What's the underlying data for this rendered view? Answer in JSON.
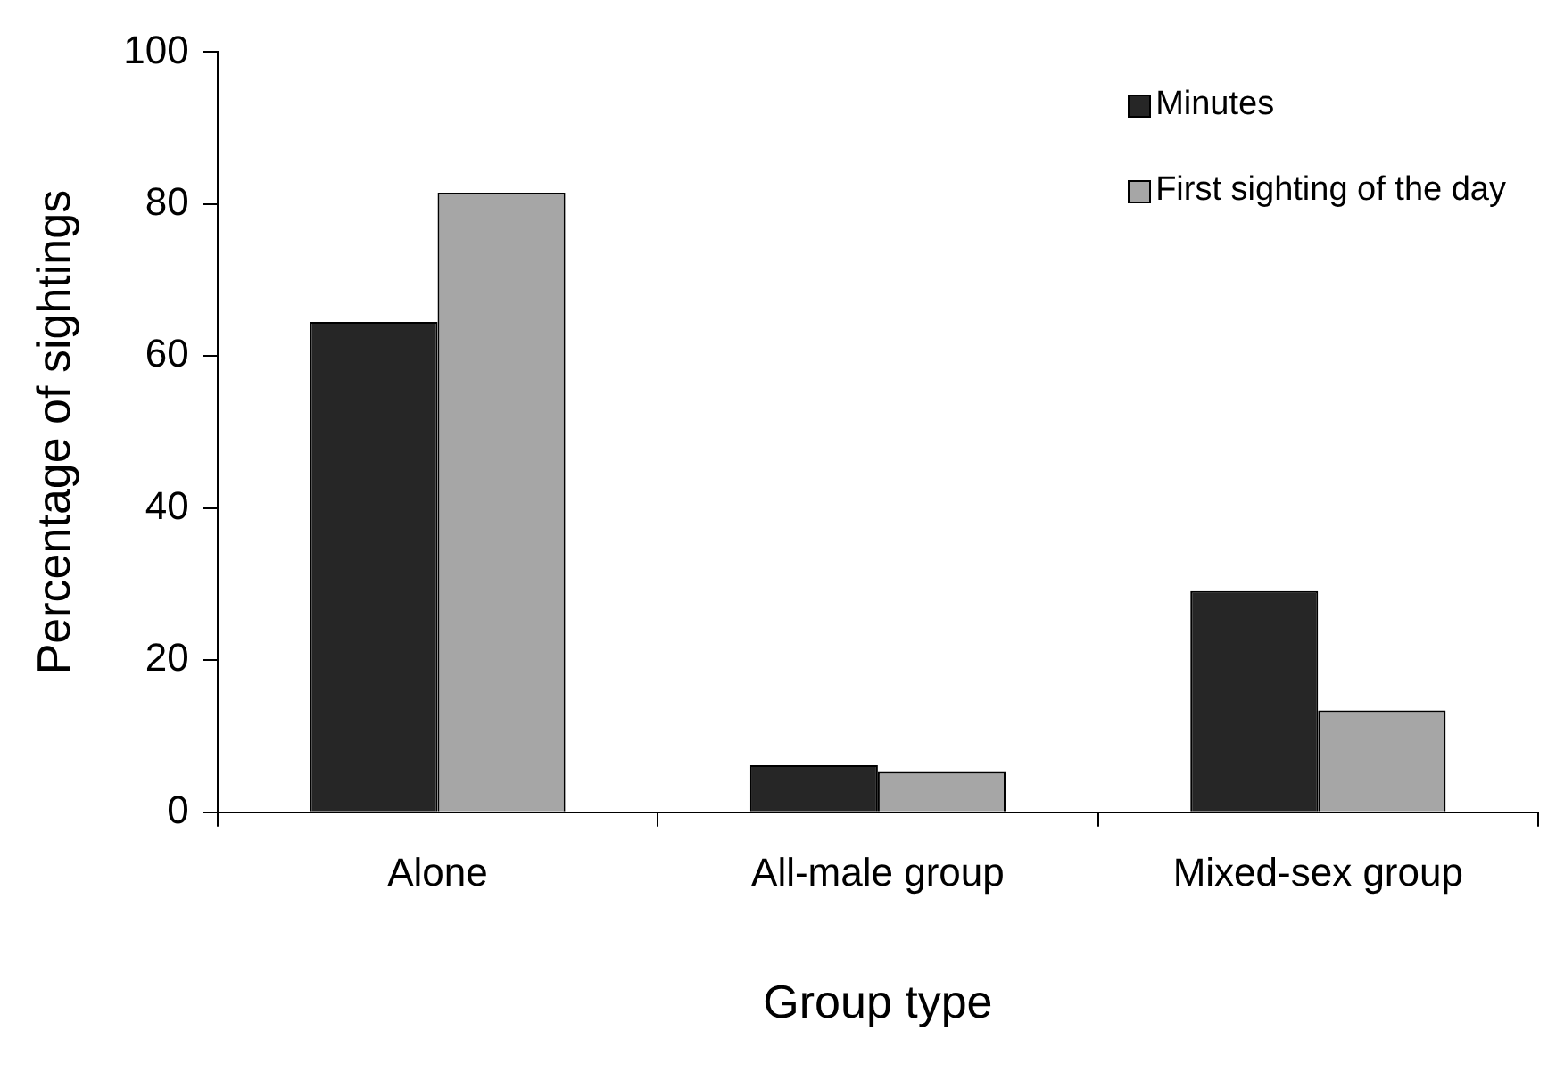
{
  "chart_data": {
    "type": "bar",
    "xlabel": "Group type",
    "ylabel": "Percentage of sightings",
    "categories": [
      "Alone",
      "All-male group",
      "Mixed-sex group"
    ],
    "series": [
      {
        "name": "Minutes",
        "color": "#262626",
        "values": [
          64.5,
          6.2,
          29.1
        ]
      },
      {
        "name": "First sighting of the day",
        "color": "#a6a6a6",
        "values": [
          81.5,
          5.3,
          13.4
        ]
      }
    ],
    "ylim": [
      0,
      100
    ],
    "yticks": [
      0,
      20,
      40,
      60,
      80,
      100
    ],
    "grid": false,
    "legend": "top right"
  }
}
